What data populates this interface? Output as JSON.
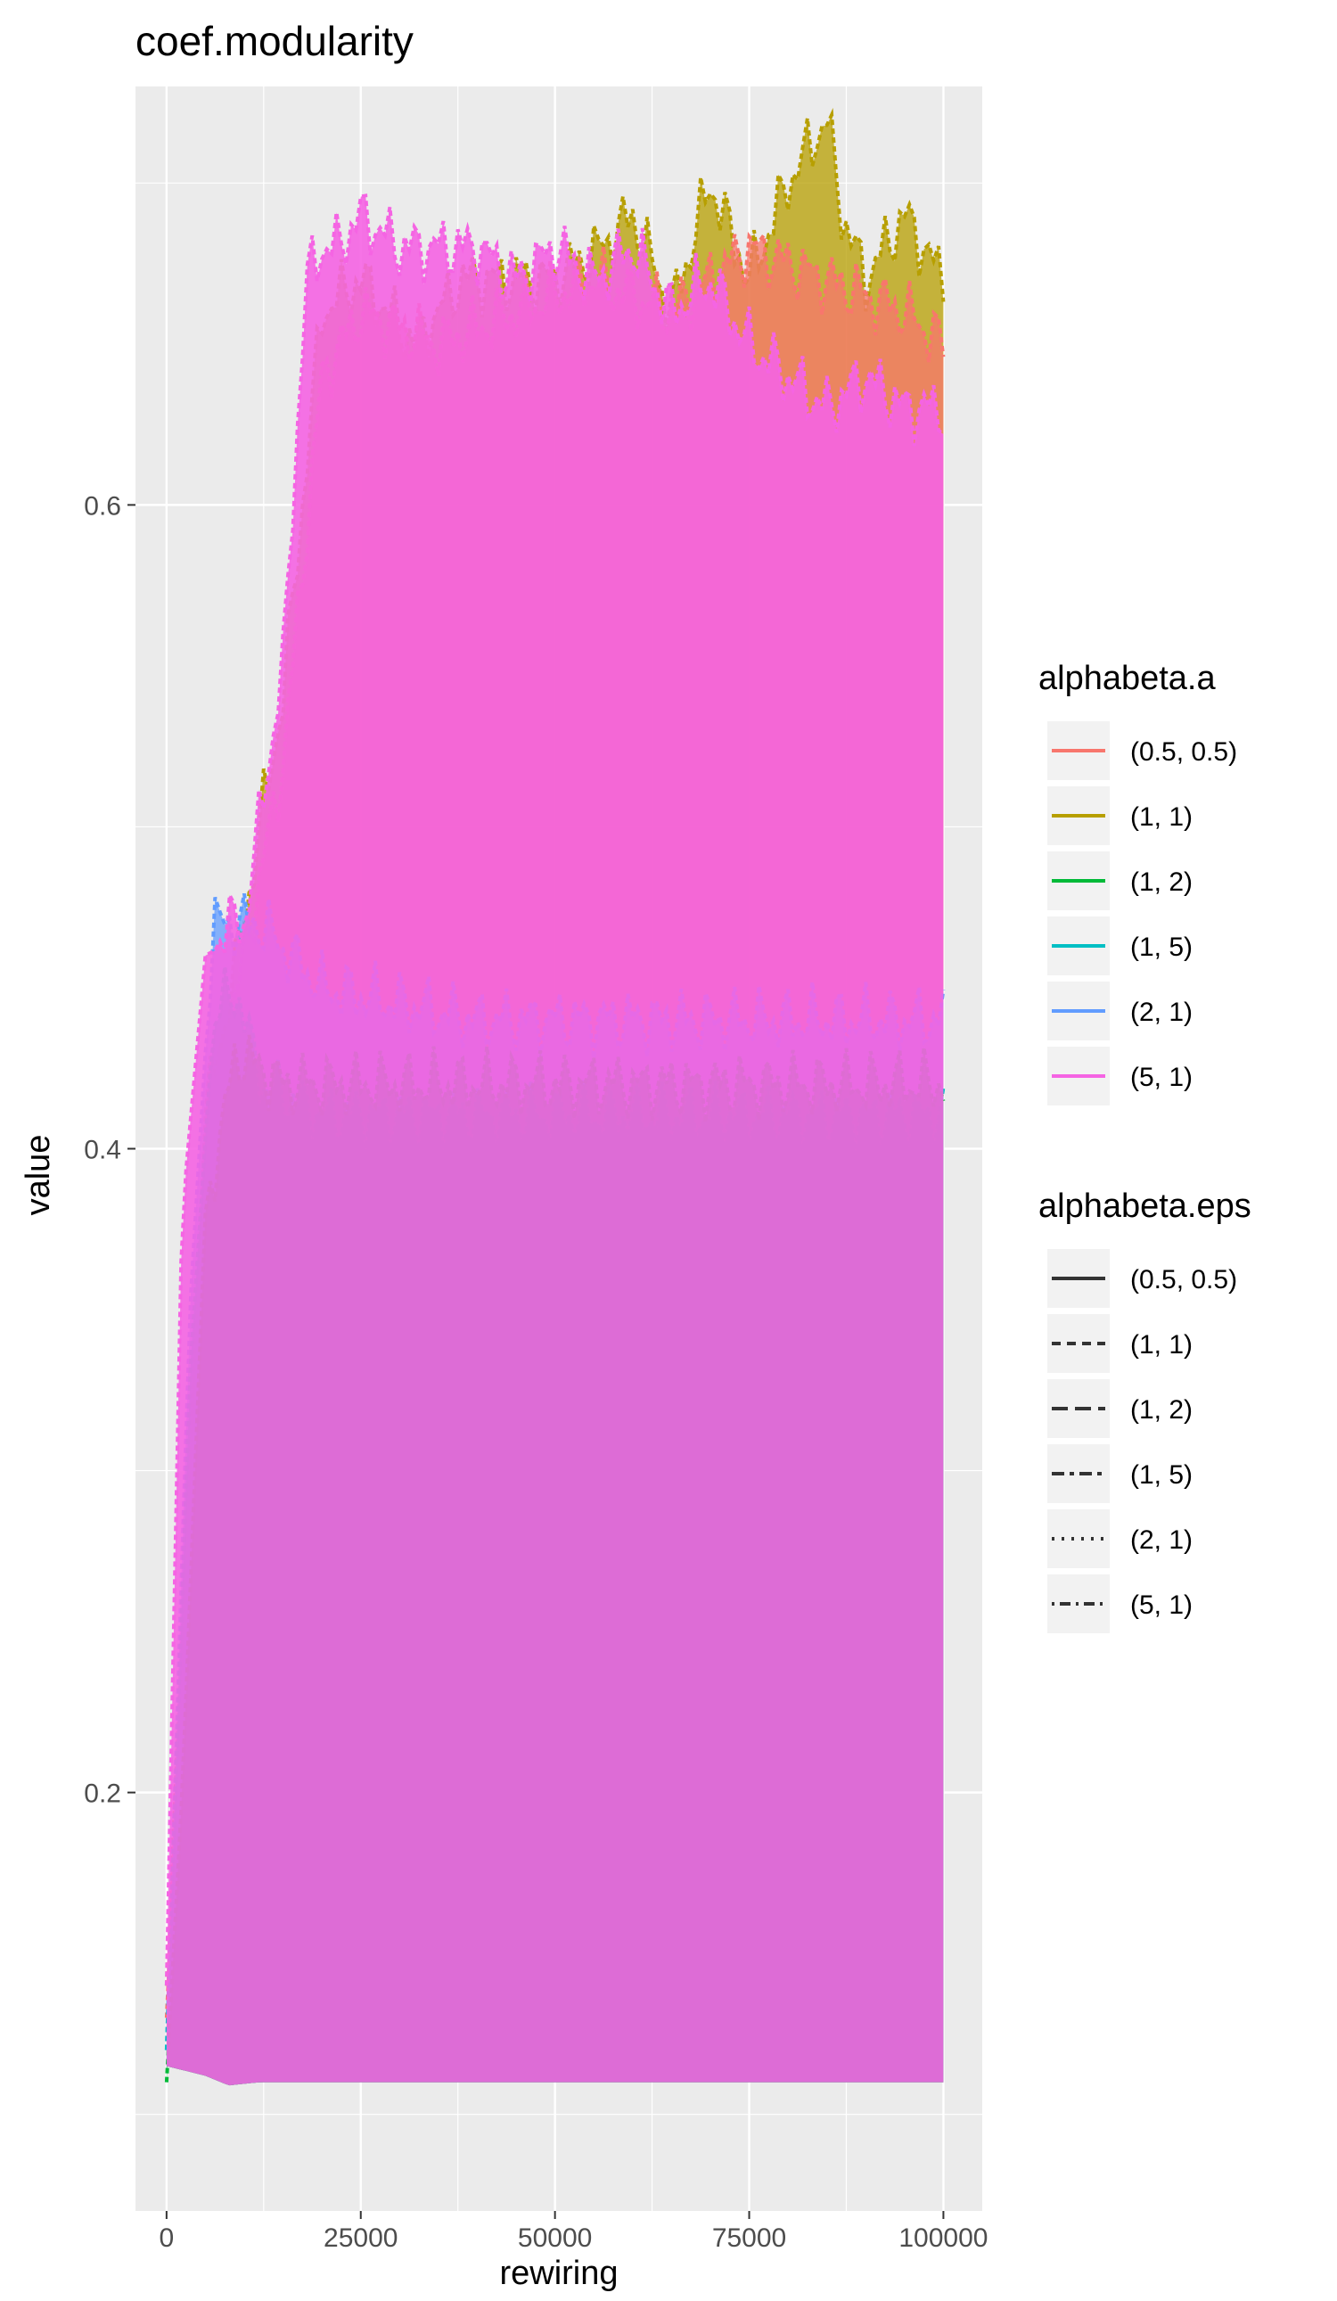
{
  "chart_data": {
    "type": "line",
    "title": "coef.modularity",
    "xlabel": "rewiring",
    "ylabel": "value",
    "xlim": [
      -4000,
      105000
    ],
    "ylim": [
      0.07,
      0.73
    ],
    "x_ticks": [
      0,
      25000,
      50000,
      75000,
      100000
    ],
    "x_tick_labels": [
      "0",
      "25000",
      "50000",
      "75000",
      "100000"
    ],
    "y_ticks": [
      0.2,
      0.4,
      0.6
    ],
    "y_tick_labels": [
      "0.2",
      "0.4",
      "0.6"
    ],
    "grid": true,
    "legend_position": "right",
    "legends": [
      {
        "title": "alphabeta.a",
        "aesthetic": "color",
        "entries": [
          {
            "label": "(0.5, 0.5)",
            "color": "#F8766D"
          },
          {
            "label": "(1, 1)",
            "color": "#B79F00"
          },
          {
            "label": "(1, 2)",
            "color": "#00BA38"
          },
          {
            "label": "(1, 5)",
            "color": "#00BFC4"
          },
          {
            "label": "(2, 1)",
            "color": "#619CFF"
          },
          {
            "label": "(5, 1)",
            "color": "#F564E3"
          }
        ]
      },
      {
        "title": "alphabeta.eps",
        "aesthetic": "linetype",
        "entries": [
          {
            "label": "(0.5, 0.5)",
            "linetype": "solid"
          },
          {
            "label": "(1, 1)",
            "linetype": "dashed"
          },
          {
            "label": "(1, 2)",
            "linetype": "longdash"
          },
          {
            "label": "(1, 5)",
            "linetype": "twodash"
          },
          {
            "label": "(2, 1)",
            "linetype": "dotted"
          },
          {
            "label": "(5, 1)",
            "linetype": "dotdash"
          }
        ]
      }
    ],
    "series": [
      {
        "color": "#B79F00",
        "x": [
          0,
          5000,
          10000,
          12000,
          15000,
          20000,
          25000,
          32000,
          38000,
          45000,
          50000,
          56000,
          60000,
          65000,
          70000,
          75000,
          80000,
          85000,
          87000,
          90000,
          95000,
          100000
        ],
        "values": [
          0.14,
          0.41,
          0.47,
          0.5,
          0.54,
          0.66,
          0.67,
          0.65,
          0.67,
          0.67,
          0.67,
          0.68,
          0.69,
          0.66,
          0.7,
          0.67,
          0.7,
          0.72,
          0.69,
          0.67,
          0.69,
          0.67
        ]
      },
      {
        "color": "#F8766D",
        "x": [
          0,
          5000,
          10000,
          15000,
          20000,
          25000,
          35000,
          45000,
          55000,
          65000,
          75000,
          85000,
          95000,
          100000
        ],
        "values": [
          0.13,
          0.4,
          0.46,
          0.52,
          0.64,
          0.66,
          0.65,
          0.66,
          0.67,
          0.66,
          0.68,
          0.67,
          0.66,
          0.65
        ]
      },
      {
        "color": "#619CFF",
        "x": [
          0,
          3000,
          6000,
          9000,
          12000,
          20000,
          40000,
          60000,
          80000,
          100000
        ],
        "values": [
          0.12,
          0.35,
          0.47,
          0.47,
          0.47,
          0.45,
          0.44,
          0.44,
          0.44,
          0.44
        ]
      },
      {
        "color": "#00BFC4",
        "x": [
          0,
          3000,
          6000,
          9000,
          12000,
          20000,
          40000,
          60000,
          80000,
          100000
        ],
        "values": [
          0.12,
          0.33,
          0.44,
          0.45,
          0.42,
          0.41,
          0.41,
          0.41,
          0.41,
          0.41
        ]
      },
      {
        "color": "#00BA38",
        "x": [
          0,
          2000,
          5000,
          9000,
          15000,
          40000,
          70000,
          100000
        ],
        "values": [
          0.11,
          0.2,
          0.38,
          0.43,
          0.42,
          0.42,
          0.42,
          0.42
        ]
      },
      {
        "color": "#F564E3",
        "x": [
          0,
          2000,
          5000,
          8000,
          10000,
          15000,
          18000,
          20000,
          22000,
          25000,
          30000,
          35000,
          40000,
          45000,
          50000,
          55000,
          60000,
          65000,
          70000,
          75000,
          80000,
          85000,
          90000,
          95000,
          100000
        ],
        "values": [
          0.14,
          0.38,
          0.46,
          0.47,
          0.47,
          0.55,
          0.67,
          0.68,
          0.68,
          0.69,
          0.68,
          0.68,
          0.68,
          0.67,
          0.68,
          0.67,
          0.68,
          0.66,
          0.67,
          0.65,
          0.64,
          0.63,
          0.64,
          0.63,
          0.63
        ]
      }
    ],
    "band_min": {
      "x": [
        0,
        5000,
        8000,
        12000,
        100000
      ],
      "values": [
        0.115,
        0.112,
        0.109,
        0.11,
        0.11
      ]
    }
  }
}
